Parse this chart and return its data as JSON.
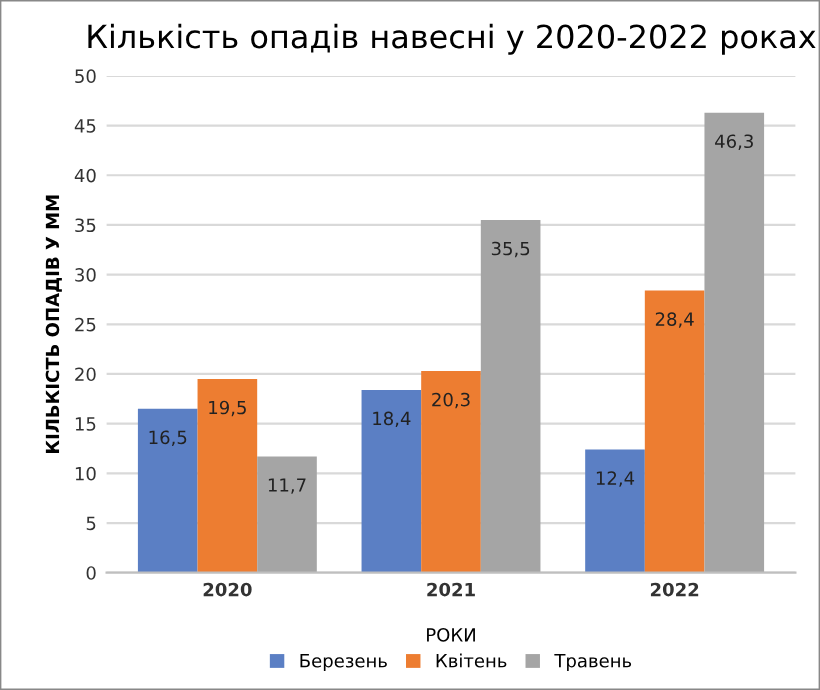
{
  "chart_data": {
    "type": "bar",
    "title": "Кількість опадів навесні у 2020-2022 роках",
    "xlabel": "РОКИ",
    "ylabel": "КІЛЬКІСТЬ ОПАДІВ У ММ",
    "categories": [
      "2020",
      "2021",
      "2022"
    ],
    "series": [
      {
        "name": "Березень",
        "color": "#5b7fc4",
        "values": [
          16.5,
          18.4,
          12.4
        ],
        "value_labels": [
          "16,5",
          "18,4",
          "12,4"
        ]
      },
      {
        "name": "Квітень",
        "color": "#ed7d31",
        "values": [
          19.5,
          20.3,
          28.4
        ],
        "value_labels": [
          "19,5",
          "20,3",
          "28,4"
        ]
      },
      {
        "name": "Травень",
        "color": "#a5a5a5",
        "values": [
          11.7,
          35.5,
          46.3
        ],
        "value_labels": [
          "11,7",
          "35,5",
          "46,3"
        ]
      }
    ],
    "ylim": [
      0,
      50
    ],
    "yticks": [
      0,
      5,
      10,
      15,
      20,
      25,
      30,
      35,
      40,
      45,
      50
    ],
    "grid": "y",
    "legend": "bottom"
  }
}
